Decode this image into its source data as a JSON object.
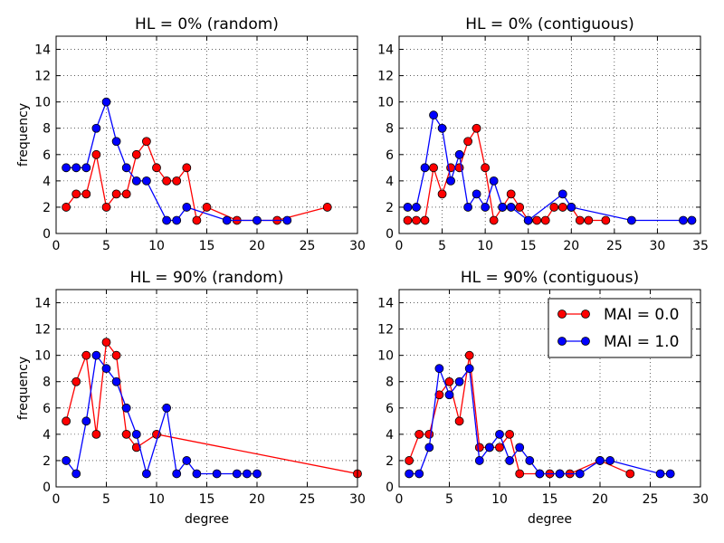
{
  "legend": {
    "placement": "top-right of panel 4",
    "entries": [
      {
        "label": "MAI = 0.0",
        "color": "#ff0000"
      },
      {
        "label": "MAI = 1.0",
        "color": "#0000ff"
      }
    ]
  },
  "chart_data": [
    {
      "type": "line",
      "title": "HL = 0% (random)",
      "xlabel": "",
      "ylabel": "frequency",
      "xlim": [
        0,
        30
      ],
      "ylim": [
        0,
        15
      ],
      "xticks": [
        0,
        5,
        10,
        15,
        20,
        25,
        30
      ],
      "yticks": [
        0,
        2,
        4,
        6,
        8,
        10,
        12,
        14
      ],
      "grid": true,
      "series": [
        {
          "name": "MAI = 0.0",
          "color": "#ff0000",
          "x": [
            1,
            2,
            3,
            4,
            5,
            6,
            7,
            8,
            9,
            10,
            11,
            12,
            13,
            14,
            15,
            18,
            22,
            27
          ],
          "y": [
            2,
            3,
            3,
            6,
            2,
            3,
            3,
            6,
            7,
            5,
            4,
            4,
            5,
            1,
            2,
            1,
            1,
            2
          ]
        },
        {
          "name": "MAI = 1.0",
          "color": "#0000ff",
          "x": [
            1,
            2,
            3,
            4,
            5,
            6,
            7,
            8,
            9,
            11,
            12,
            13,
            17,
            20,
            23
          ],
          "y": [
            5,
            5,
            5,
            8,
            10,
            7,
            5,
            4,
            4,
            1,
            1,
            2,
            1,
            1,
            1
          ]
        }
      ]
    },
    {
      "type": "line",
      "title": "HL = 0% (contiguous)",
      "xlabel": "",
      "ylabel": "",
      "xlim": [
        0,
        35
      ],
      "ylim": [
        0,
        15
      ],
      "xticks": [
        0,
        5,
        10,
        15,
        20,
        25,
        30,
        35
      ],
      "yticks": [
        0,
        2,
        4,
        6,
        8,
        10,
        12,
        14
      ],
      "grid": true,
      "series": [
        {
          "name": "MAI = 0.0",
          "color": "#ff0000",
          "x": [
            1,
            2,
            3,
            4,
            5,
            6,
            7,
            8,
            9,
            10,
            11,
            12,
            13,
            14,
            15,
            16,
            17,
            18,
            19,
            20,
            21,
            22,
            24
          ],
          "y": [
            1,
            1,
            1,
            5,
            3,
            5,
            5,
            7,
            8,
            5,
            1,
            2,
            3,
            2,
            1,
            1,
            1,
            2,
            2,
            2,
            1,
            1,
            1
          ]
        },
        {
          "name": "MAI = 1.0",
          "color": "#0000ff",
          "x": [
            1,
            2,
            3,
            4,
            5,
            6,
            7,
            8,
            9,
            10,
            11,
            12,
            13,
            15,
            19,
            20,
            27,
            33,
            34
          ],
          "y": [
            2,
            2,
            5,
            9,
            8,
            4,
            6,
            2,
            3,
            2,
            4,
            2,
            2,
            1,
            3,
            2,
            1,
            1,
            1
          ]
        }
      ]
    },
    {
      "type": "line",
      "title": "HL = 90% (random)",
      "xlabel": "degree",
      "ylabel": "frequency",
      "xlim": [
        0,
        30
      ],
      "ylim": [
        0,
        15
      ],
      "xticks": [
        0,
        5,
        10,
        15,
        20,
        25,
        30
      ],
      "yticks": [
        0,
        2,
        4,
        6,
        8,
        10,
        12,
        14
      ],
      "grid": true,
      "series": [
        {
          "name": "MAI = 0.0",
          "color": "#ff0000",
          "x": [
            1,
            2,
            3,
            4,
            5,
            6,
            7,
            8,
            10,
            30
          ],
          "y": [
            5,
            8,
            10,
            4,
            11,
            10,
            4,
            3,
            4,
            1
          ]
        },
        {
          "name": "MAI = 1.0",
          "color": "#0000ff",
          "x": [
            1,
            2,
            3,
            4,
            5,
            6,
            7,
            8,
            9,
            11,
            12,
            13,
            14,
            16,
            18,
            19,
            20
          ],
          "y": [
            2,
            1,
            5,
            10,
            9,
            8,
            6,
            4,
            1,
            6,
            1,
            2,
            1,
            1,
            1,
            1,
            1
          ]
        }
      ]
    },
    {
      "type": "line",
      "title": "HL = 90% (contiguous)",
      "xlabel": "degree",
      "ylabel": "",
      "xlim": [
        0,
        30
      ],
      "ylim": [
        0,
        15
      ],
      "xticks": [
        0,
        5,
        10,
        15,
        20,
        25,
        30
      ],
      "yticks": [
        0,
        2,
        4,
        6,
        8,
        10,
        12,
        14
      ],
      "grid": true,
      "series": [
        {
          "name": "MAI = 0.0",
          "color": "#ff0000",
          "x": [
            1,
            2,
            3,
            4,
            5,
            6,
            7,
            8,
            9,
            10,
            11,
            12,
            14,
            15,
            16,
            17,
            20,
            23
          ],
          "y": [
            2,
            4,
            4,
            7,
            8,
            5,
            10,
            3,
            3,
            3,
            4,
            1,
            1,
            1,
            1,
            1,
            2,
            1
          ]
        },
        {
          "name": "MAI = 1.0",
          "color": "#0000ff",
          "x": [
            1,
            2,
            3,
            4,
            5,
            6,
            7,
            8,
            9,
            10,
            11,
            12,
            13,
            14,
            16,
            18,
            20,
            21,
            26,
            27
          ],
          "y": [
            1,
            1,
            3,
            9,
            7,
            8,
            9,
            2,
            3,
            4,
            2,
            3,
            2,
            1,
            1,
            1,
            2,
            2,
            1,
            1
          ]
        }
      ]
    }
  ]
}
